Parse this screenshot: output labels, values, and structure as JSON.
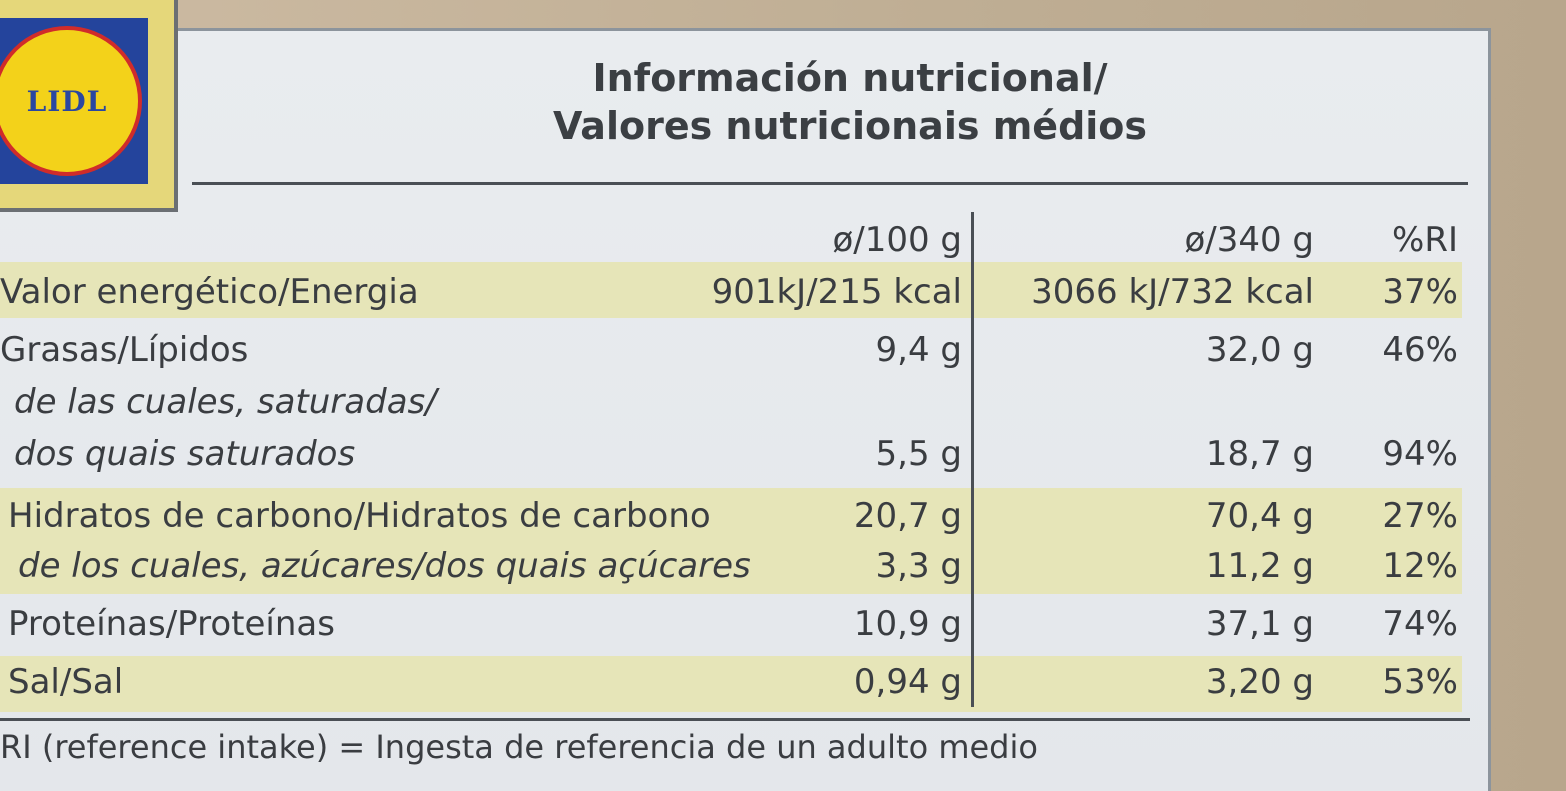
{
  "logo": {
    "text": "LIDL"
  },
  "title": {
    "line1": "Información nutricional/",
    "line2": "Valores nutricionais médios"
  },
  "headers": {
    "per100": "ø/100 g",
    "per340": "ø/340 g",
    "ri": "%RI"
  },
  "rows": [
    {
      "label": "Valor energético/Energia",
      "per100": "901kJ/215 kcal",
      "per340": "3066 kJ/732 kcal",
      "ri": "37%"
    },
    {
      "label": "Grasas/Lípidos",
      "per100": "9,4 g",
      "per340": "32,0 g",
      "ri": "46%"
    },
    {
      "label": "de las cuales, saturadas/",
      "per100": "",
      "per340": "",
      "ri": ""
    },
    {
      "label": "dos quais saturados",
      "per100": "5,5 g",
      "per340": "18,7 g",
      "ri": "94%"
    },
    {
      "label": "Hidratos de carbono/Hidratos de carbono",
      "per100": "20,7 g",
      "per340": "70,4 g",
      "ri": "27%"
    },
    {
      "label": "de los cuales, azúcares/dos quais açúcares",
      "per100": "3,3 g",
      "per340": "11,2 g",
      "ri": "12%"
    },
    {
      "label": "Proteínas/Proteínas",
      "per100": "10,9 g",
      "per340": "37,1 g",
      "ri": "74%"
    },
    {
      "label": "Sal/Sal",
      "per100": "0,94 g",
      "per340": "3,20 g",
      "ri": "53%"
    }
  ],
  "footnote": "RI (reference intake) = Ingesta de referencia de un adulto medio",
  "colors": {
    "band": "#e6e5b8",
    "panel": "#e8ebee",
    "text": "#3a3d41"
  }
}
